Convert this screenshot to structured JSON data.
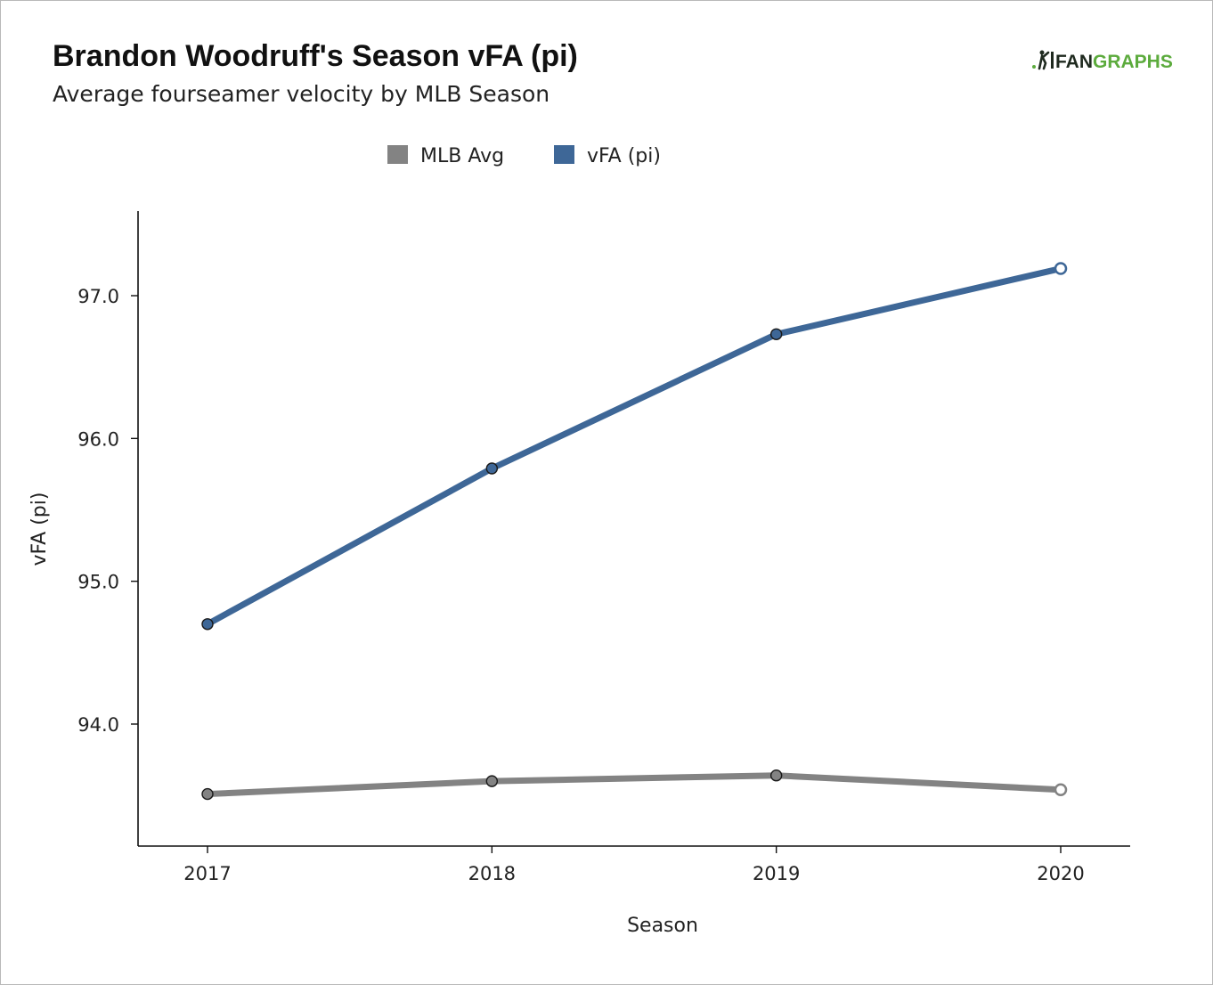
{
  "header": {
    "title": "Brandon Woodruff's Season vFA (pi)",
    "subtitle": "Average fourseamer velocity by MLB Season"
  },
  "brand": {
    "part1": "FAN",
    "part2": "GRAPHS",
    "icon": "batter-icon",
    "dark_color": "#1f2a1f",
    "green_color": "#5cab3d"
  },
  "chart_data": {
    "type": "line",
    "title": "Brandon Woodruff's Season vFA (pi)",
    "subtitle": "Average fourseamer velocity by MLB Season",
    "xlabel": "Season",
    "ylabel": "vFA (pi)",
    "x": [
      2017,
      2018,
      2019,
      2020
    ],
    "x_tick_labels": [
      "2017",
      "2018",
      "2019",
      "2020"
    ],
    "y_ticks": [
      94.0,
      95.0,
      96.0,
      97.0
    ],
    "y_tick_labels": [
      "94.0",
      "95.0",
      "96.0",
      "97.0"
    ],
    "ylim": [
      93.15,
      97.6
    ],
    "xlim": [
      2016.75,
      2020.25
    ],
    "grid": false,
    "legend_position": "top-center",
    "series": [
      {
        "name": "MLB Avg",
        "color": "#838383",
        "values": [
          93.51,
          93.6,
          93.64,
          93.54
        ],
        "open_last_point": true
      },
      {
        "name": "vFA (pi)",
        "color": "#3e6797",
        "values": [
          94.7,
          95.79,
          96.73,
          97.19
        ],
        "open_last_point": true
      }
    ]
  }
}
